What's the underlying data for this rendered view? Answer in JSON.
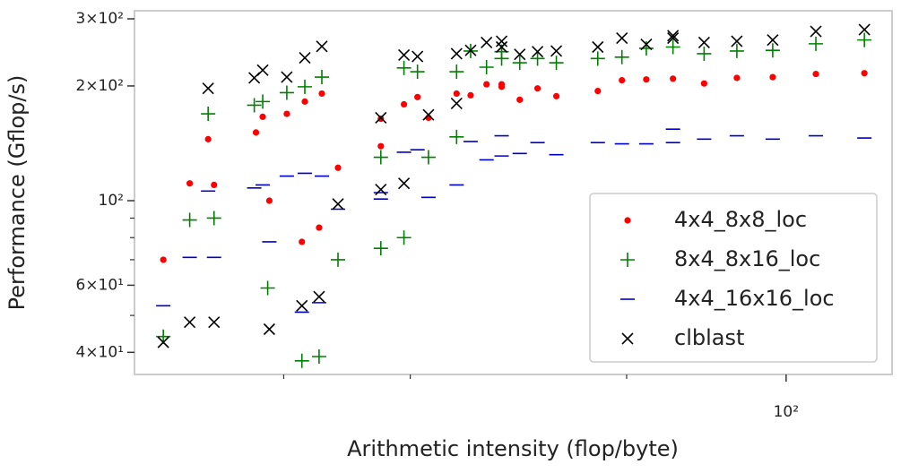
{
  "chart_data": {
    "type": "scatter",
    "xlabel": "Arithmetic intensity (flop/byte)",
    "ylabel": "Performance (Gflop/s)",
    "xscale": "log",
    "yscale": "log",
    "xlim": [
      12.4,
      140.4
    ],
    "ylim": [
      35,
      315
    ],
    "xticks": [
      {
        "value": 100,
        "label": "10²"
      }
    ],
    "xminor_ticks": [
      20,
      30,
      60
    ],
    "yticks": [
      {
        "value": 40,
        "label": "4×10¹"
      },
      {
        "value": 60,
        "label": "6×10¹"
      },
      {
        "value": 100,
        "label": "10²"
      },
      {
        "value": 200,
        "label": "2×10²"
      },
      {
        "value": 300,
        "label": "3×10²"
      }
    ],
    "yminor_ticks": [
      50,
      70,
      80,
      90
    ],
    "legend": "lower right",
    "series": [
      {
        "name": "4x4_8x8_loc",
        "color": "#ff0000",
        "marker": "dot",
        "x": [
          13.6,
          14.8,
          15.7,
          16.0,
          18.3,
          18.7,
          19.1,
          20.2,
          21.2,
          21.4,
          22.4,
          22.6,
          23.8,
          27.3,
          27.3,
          29.4,
          30.7,
          31.8,
          34.8,
          36.4,
          38.3,
          40.2,
          40.2,
          42.6,
          45.1,
          47.9,
          54.7,
          59.1,
          63.9,
          69.6,
          76.9,
          85.4,
          95.8,
          110,
          128.5
        ],
        "values": [
          70,
          111,
          145,
          110,
          151,
          166,
          100,
          169,
          78,
          182,
          85,
          191,
          122,
          164,
          139,
          179,
          187,
          165,
          191,
          189,
          202,
          199,
          202,
          184,
          197,
          188,
          194,
          207,
          208,
          209,
          203,
          210,
          211,
          215,
          216
        ]
      },
      {
        "name": "8x4_8x16_loc",
        "color": "#008000",
        "marker": "plus",
        "x": [
          13.6,
          14.8,
          15.7,
          16.0,
          18.2,
          18.7,
          19.0,
          20.2,
          21.2,
          21.4,
          22.4,
          22.6,
          23.8,
          27.3,
          27.3,
          29.4,
          29.4,
          30.7,
          31.8,
          34.8,
          34.8,
          36.4,
          38.3,
          40.2,
          40.2,
          42.6,
          45.1,
          47.9,
          54.7,
          59.1,
          63.9,
          69.6,
          76.9,
          85.4,
          95.8,
          110,
          128.5
        ],
        "values": [
          44,
          89,
          169,
          90,
          178,
          182,
          59,
          192,
          38,
          199,
          39,
          211,
          70,
          130,
          75,
          223,
          80,
          218,
          130,
          147,
          218,
          247,
          224,
          236,
          246,
          230,
          236,
          230,
          236,
          238,
          251,
          253,
          243,
          247,
          248,
          258,
          264
        ]
      },
      {
        "name": "4x4_16x16_loc",
        "color": "#0000cc",
        "marker": "dash",
        "x": [
          13.6,
          14.8,
          15.7,
          16.0,
          18.2,
          18.7,
          19.1,
          20.2,
          21.2,
          21.4,
          22.4,
          22.6,
          23.8,
          27.3,
          27.3,
          29.4,
          30.7,
          31.8,
          34.8,
          36.4,
          38.3,
          40.2,
          40.2,
          42.6,
          45.1,
          47.9,
          54.7,
          59.1,
          63.9,
          69.6,
          69.6,
          76.9,
          85.4,
          95.8,
          110,
          128.5
        ],
        "values": [
          53,
          71,
          106,
          71,
          108,
          110,
          78,
          116,
          51,
          118,
          54,
          116,
          95,
          101,
          105,
          134,
          136,
          102,
          110,
          143,
          128,
          131,
          148,
          133,
          142,
          132,
          142,
          141,
          141,
          154,
          142,
          145,
          148,
          145,
          148,
          146
        ]
      },
      {
        "name": "clblast",
        "color": "#000000",
        "marker": "x",
        "x": [
          13.6,
          14.8,
          15.7,
          16.0,
          18.2,
          18.7,
          19.1,
          20.2,
          21.2,
          21.4,
          22.4,
          22.6,
          23.8,
          27.3,
          27.3,
          29.4,
          29.4,
          30.7,
          31.8,
          34.8,
          34.8,
          36.4,
          38.3,
          40.2,
          40.2,
          42.6,
          45.1,
          47.9,
          54.7,
          59.1,
          63.9,
          69.6,
          69.6,
          76.9,
          85.4,
          95.8,
          110,
          128.5
        ],
        "values": [
          42.5,
          48,
          197,
          48,
          210,
          220,
          46,
          211,
          53,
          237,
          56,
          254,
          98,
          165,
          107,
          241,
          111,
          239,
          168,
          180,
          243,
          248,
          260,
          262,
          253,
          242,
          246,
          247,
          253,
          267,
          257,
          271,
          267,
          260,
          262,
          264,
          278,
          281
        ]
      }
    ]
  }
}
